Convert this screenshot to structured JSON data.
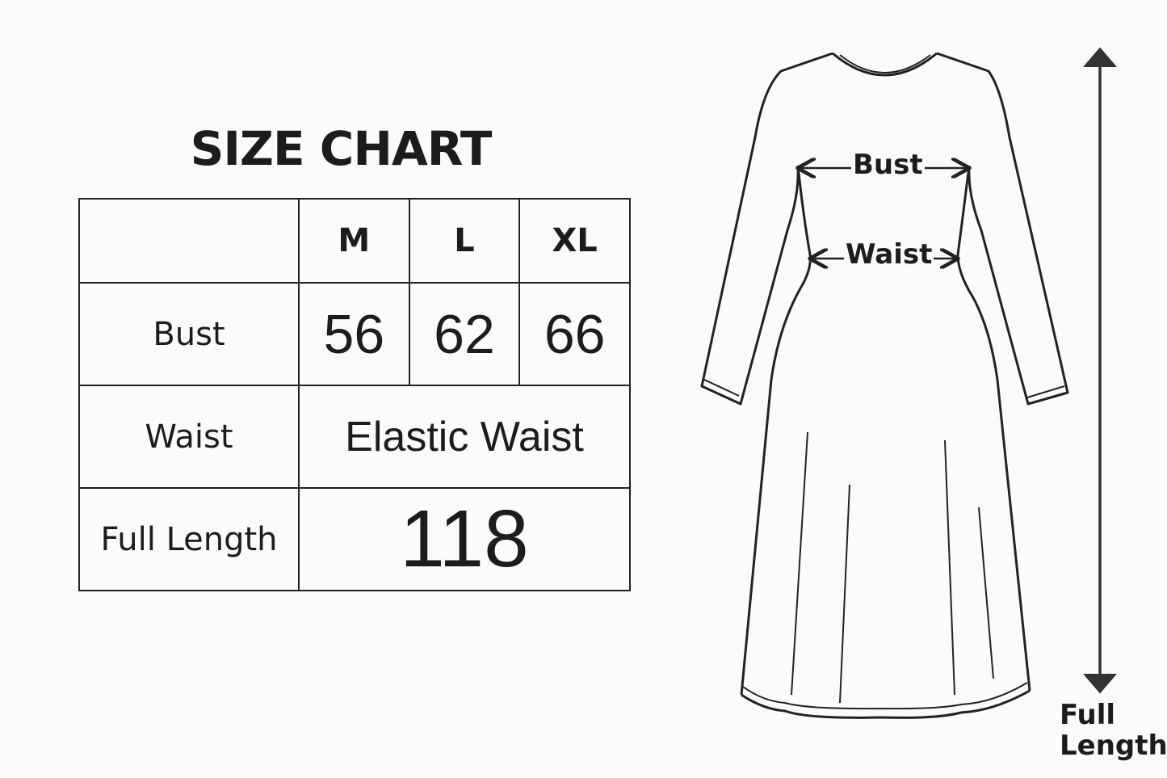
{
  "title": "SIZE CHART",
  "table": {
    "sizes": [
      "M",
      "L",
      "XL"
    ],
    "rows": [
      {
        "label": "Bust",
        "values": [
          "56",
          "62",
          "66"
        ]
      },
      {
        "label": "Waist",
        "value": "Elastic Waist"
      },
      {
        "label": "Full Length",
        "value": "118"
      }
    ]
  },
  "diagram": {
    "bust_label": "Bust",
    "waist_label": "Waist",
    "length_label_1": "Full",
    "length_label_2": "Length"
  }
}
